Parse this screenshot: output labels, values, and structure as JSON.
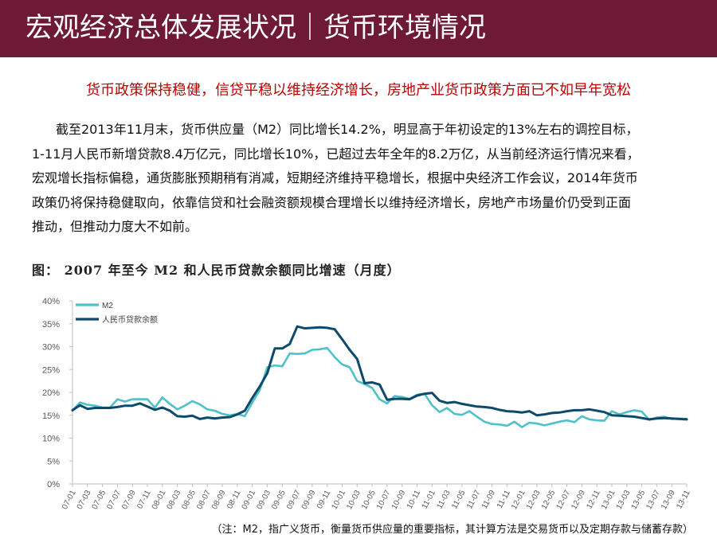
{
  "header": {
    "title": "宏观经济总体发展状况｜货币环境情况"
  },
  "subtitle": "货币政策保持稳健，信贷平稳以维持经济增长，房地产业货币政策方面已不如早年宽松",
  "body": {
    "lines": [
      "截至2013年11月末，货币供应量（M2）同比增长14.2%，明显高于年初设定的13%左右的调控目标，",
      "1-11月人民币新增贷款8.4万亿元，同比增长10%，已超过去年全年的8.2万亿，从当前经济运行情况来看，",
      "宏观增长指标偏稳，通货膨胀预期稍有消减，短期经济维持平稳增长，根据中央经济工作会议，2014年货币",
      "政策仍将保持稳健取向，依靠信贷和社会融资额规模合理增长以维持经济增长，房地产市场量价仍受到正面",
      "推动，但推动力度大不如前。"
    ]
  },
  "chart_title": "图： 2007 年至今 M2 和人民币贷款余额同比增速（月度）",
  "footnote": "（注：M2，指广义货币，衡量货币供应量的重要指标，其计算方法是交易货币以及定期存款与储蓄存款）",
  "chart_data": {
    "type": "line",
    "title": "图： 2007 年至今 M2 和人民币贷款余额同比增速（月度）",
    "xlabel": "",
    "ylabel": "",
    "ylim": [
      0,
      40
    ],
    "yticks": [
      "0%",
      "5%",
      "10%",
      "15%",
      "20%",
      "25%",
      "30%",
      "35%",
      "40%"
    ],
    "xticks": [
      "07-01",
      "07-03",
      "07-05",
      "07-07",
      "07-09",
      "07-11",
      "08-01",
      "08-03",
      "08-05",
      "08-07",
      "08-09",
      "08-11",
      "09-01",
      "09-03",
      "09-05",
      "09-07",
      "09-09",
      "09-11",
      "10-01",
      "10-03",
      "10-05",
      "10-07",
      "10-09",
      "10-11",
      "11-01",
      "11-03",
      "11-05",
      "11-07",
      "11-09",
      "11-11",
      "12-01",
      "12-03",
      "12-05",
      "12-07",
      "12-09",
      "12-11",
      "13-01",
      "13-03",
      "13-05",
      "13-07",
      "13-09",
      "13-11"
    ],
    "grid": false,
    "legend": "top-left",
    "series": [
      {
        "name": "M2",
        "color": "#4fc1c8",
        "values": [
          16.0,
          17.8,
          17.3,
          17.1,
          16.7,
          16.7,
          18.5,
          18.0,
          18.5,
          18.5,
          18.5,
          16.7,
          18.9,
          17.5,
          16.3,
          17.1,
          18.1,
          17.4,
          16.3,
          16.0,
          15.3,
          15.0,
          15.3,
          14.8,
          17.8,
          20.5,
          25.5,
          25.9,
          25.7,
          28.5,
          28.4,
          28.5,
          29.3,
          29.4,
          29.7,
          27.7,
          26.1,
          25.5,
          22.5,
          21.8,
          21.0,
          18.5,
          17.6,
          19.2,
          19.0,
          18.6,
          19.5,
          19.7,
          17.2,
          15.7,
          16.6,
          15.3,
          15.1,
          15.9,
          14.7,
          13.6,
          13.1,
          13.0,
          12.7,
          13.6,
          12.4,
          13.4,
          13.2,
          12.8,
          13.2,
          13.6,
          13.9,
          13.5,
          14.8,
          14.1,
          13.9,
          13.8,
          15.9,
          15.2,
          15.7,
          16.1,
          15.8,
          14.0,
          14.5,
          14.7,
          14.2,
          14.3,
          14.2
        ]
      },
      {
        "name": "人民币贷款余额",
        "color": "#0d4a6b",
        "values": [
          16.1,
          17.2,
          16.4,
          16.6,
          16.6,
          16.6,
          16.8,
          17.1,
          17.1,
          17.6,
          16.9,
          16.2,
          16.7,
          16.0,
          14.8,
          14.7,
          14.9,
          14.2,
          14.5,
          14.3,
          14.5,
          14.6,
          15.2,
          16.0,
          18.8,
          21.3,
          24.2,
          29.6,
          29.6,
          30.6,
          34.4,
          34.0,
          34.1,
          34.2,
          34.1,
          33.8,
          31.6,
          29.3,
          27.3,
          22.0,
          22.2,
          21.7,
          18.4,
          18.6,
          18.6,
          18.5,
          19.3,
          19.7,
          19.9,
          18.2,
          17.7,
          17.9,
          17.5,
          17.2,
          16.9,
          16.8,
          16.6,
          16.2,
          15.9,
          15.8,
          15.6,
          15.9,
          15.0,
          15.2,
          15.5,
          15.6,
          15.9,
          16.1,
          16.1,
          16.3,
          16.0,
          15.7,
          15.0,
          14.9,
          14.8,
          14.7,
          14.4,
          14.1,
          14.3,
          14.4,
          14.3,
          14.2,
          14.1
        ]
      }
    ]
  }
}
